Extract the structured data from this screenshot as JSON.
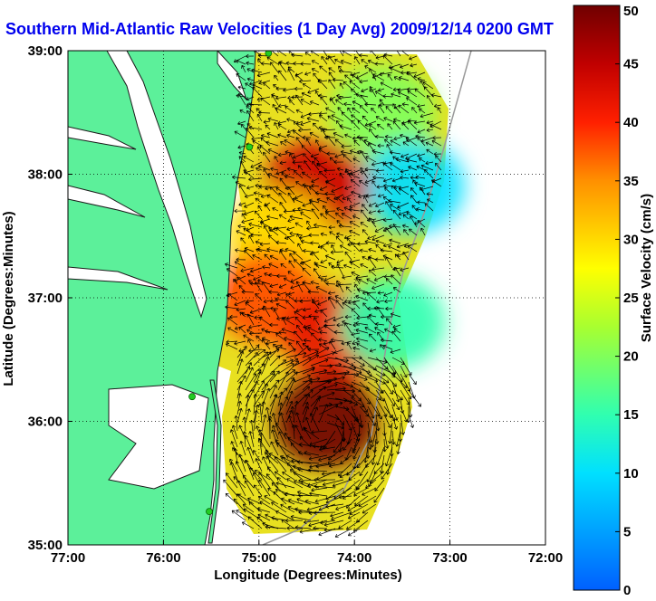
{
  "chart_data": {
    "type": "heatmap",
    "title": "Southern Mid-Atlantic Raw Velocities (1 Day Avg) 2009/12/14 0200 GMT",
    "xlabel": "Longitude (Degrees:Minutes)",
    "ylabel": "Latitude (Degrees:Minutes)",
    "colorbar_label": "Surface Velocity (cm/s)",
    "xlim": [
      -77,
      -72
    ],
    "ylim": [
      35,
      39
    ],
    "clim": [
      0,
      50
    ],
    "grid": true,
    "x_ticks": [
      {
        "value": -77,
        "label": "77:00"
      },
      {
        "value": -76,
        "label": "76:00"
      },
      {
        "value": -75,
        "label": "75:00"
      },
      {
        "value": -74,
        "label": "74:00"
      },
      {
        "value": -73,
        "label": "73:00"
      },
      {
        "value": -72,
        "label": "72:00"
      }
    ],
    "y_ticks": [
      {
        "value": 35,
        "label": "35:00"
      },
      {
        "value": 36,
        "label": "36:00"
      },
      {
        "value": 37,
        "label": "37:00"
      },
      {
        "value": 38,
        "label": "38:00"
      },
      {
        "value": 39,
        "label": "39:00"
      }
    ],
    "colorbar_ticks": [
      {
        "value": 0,
        "label": "0"
      },
      {
        "value": 5,
        "label": "5"
      },
      {
        "value": 10,
        "label": "10"
      },
      {
        "value": 15,
        "label": "15"
      },
      {
        "value": 20,
        "label": "20"
      },
      {
        "value": 25,
        "label": "25"
      },
      {
        "value": 30,
        "label": "30"
      },
      {
        "value": 35,
        "label": "35"
      },
      {
        "value": 40,
        "label": "40"
      },
      {
        "value": 45,
        "label": "45"
      },
      {
        "value": 50,
        "label": "50"
      }
    ],
    "stations": [
      {
        "lon": -74.9,
        "lat": 38.98
      },
      {
        "lon": -75.1,
        "lat": 38.22
      },
      {
        "lon": -75.7,
        "lat": 36.2
      },
      {
        "lon": -75.52,
        "lat": 35.27
      }
    ],
    "speed_field_regions": [
      {
        "lon": -73.7,
        "lat": 38.5,
        "speed": 20
      },
      {
        "lon": -73.4,
        "lat": 37.9,
        "speed": 10
      },
      {
        "lon": -74.4,
        "lat": 37.9,
        "speed": 44
      },
      {
        "lon": -74.8,
        "lat": 37.5,
        "speed": 30
      },
      {
        "lon": -74.9,
        "lat": 37.0,
        "speed": 38
      },
      {
        "lon": -74.2,
        "lat": 36.7,
        "speed": 42
      },
      {
        "lon": -74.3,
        "lat": 36.0,
        "speed": 50
      },
      {
        "lon": -73.6,
        "lat": 36.8,
        "speed": 15
      }
    ],
    "colors": {
      "land": "#5cf09a",
      "coastline": "#1a1a1a",
      "shelf_contour": "#999999",
      "station": "#22cc22",
      "vector": "#000000",
      "title": "#0000ee"
    }
  }
}
